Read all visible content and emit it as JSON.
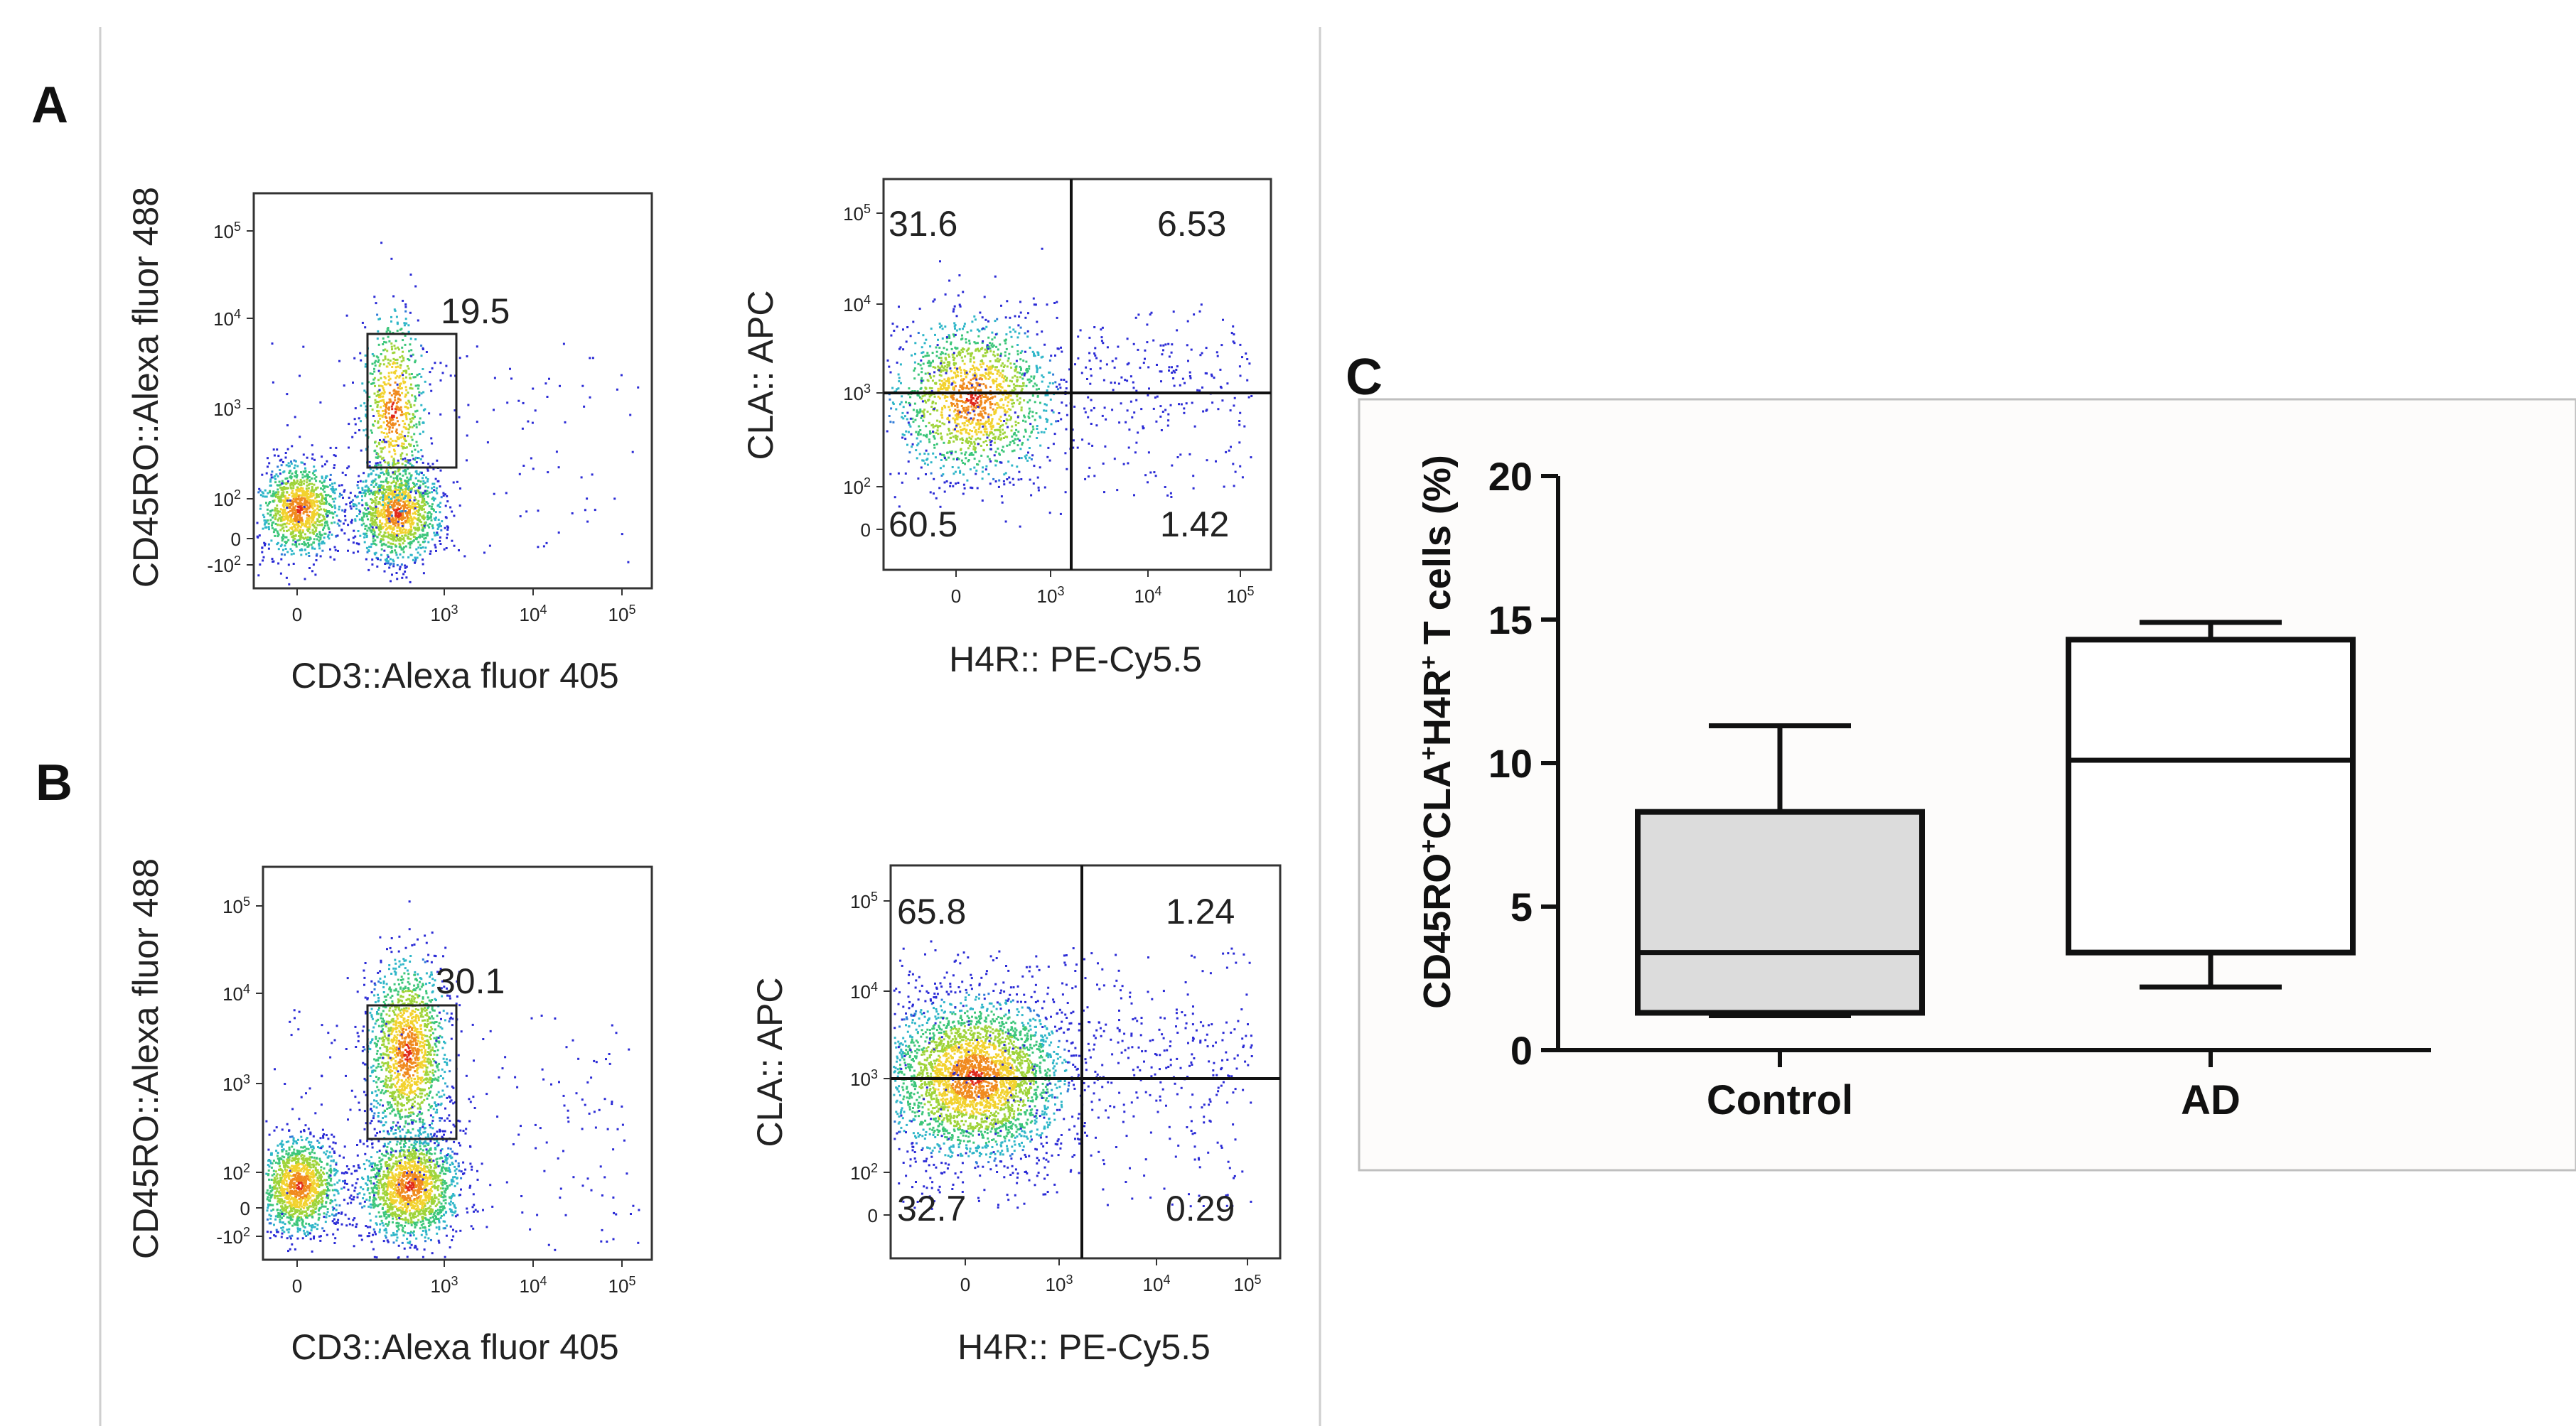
{
  "panels": {
    "a": "A",
    "b": "B",
    "c": "C"
  },
  "flow": {
    "row_a": {
      "left_plot": {
        "xlabel": "CD3::Alexa fluor 405",
        "ylabel": "CD45RO::Alexa fluor 488",
        "gate_value": "19.5"
      },
      "right_plot": {
        "xlabel": "H4R:: PE-Cy5.5",
        "ylabel": "CLA:: APC",
        "quadrants": {
          "top_left": "31.6",
          "top_right": "6.53",
          "bottom_left": "60.5",
          "bottom_right": "1.42"
        }
      }
    },
    "row_b": {
      "left_plot": {
        "xlabel": "CD3::Alexa fluor 405",
        "ylabel": "CD45RO::Alexa fluor 488",
        "gate_value": "30.1"
      },
      "right_plot": {
        "xlabel": "H4R:: PE-Cy5.5",
        "ylabel": "CLA:: APC",
        "quadrants": {
          "top_left": "65.8",
          "top_right": "1.24",
          "bottom_left": "32.7",
          "bottom_right": "0.29"
        }
      }
    },
    "ticks": {
      "x_left": [
        "0",
        "10",
        "10",
        "10"
      ],
      "x_left_exp": [
        "",
        "3",
        "4",
        "5"
      ],
      "y_left": [
        "10",
        "10",
        "10",
        "10",
        "0",
        "-10"
      ],
      "y_left_exp": [
        "5",
        "4",
        "3",
        "2",
        "",
        "2"
      ],
      "x_right": [
        "0",
        "10",
        "10",
        "10"
      ],
      "x_right_exp": [
        "",
        "3",
        "4",
        "5"
      ],
      "y_right": [
        "10",
        "10",
        "10",
        "10",
        "0"
      ],
      "y_right_exp": [
        "5",
        "4",
        "3",
        "2",
        ""
      ]
    }
  },
  "chart_data": {
    "type": "box",
    "title": "",
    "xlabel": "",
    "ylabel": "CD45RO+CLA+H4R+ T cells (%)",
    "ylabel_parts": [
      "CD45RO",
      "+",
      "CLA",
      "+",
      "H4R",
      "+",
      " T cells (%)"
    ],
    "ylim": [
      0,
      20
    ],
    "yticks": [
      "0",
      "5",
      "10",
      "15",
      "20"
    ],
    "categories": [
      "Control",
      "AD"
    ],
    "series": [
      {
        "name": "Control",
        "min": 1.2,
        "q1": 1.3,
        "median": 3.4,
        "q3": 8.3,
        "max": 11.3,
        "fill": "#dcdcdc"
      },
      {
        "name": "AD",
        "min": 2.2,
        "q1": 3.4,
        "median": 10.1,
        "q3": 14.3,
        "max": 14.9,
        "fill": "#ffffff"
      }
    ]
  }
}
